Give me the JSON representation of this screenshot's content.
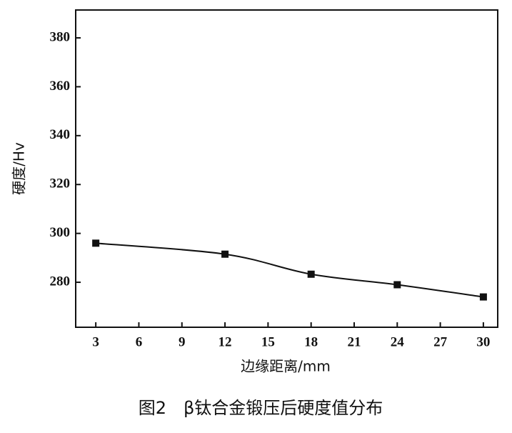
{
  "chart_data": {
    "type": "line",
    "title": "图2　β钛合金锻压后硬度值分布",
    "x_label": "边缘距离/mm",
    "y_label": "硬度/Hv",
    "x": [
      3,
      12,
      18,
      24,
      30
    ],
    "series": [
      {
        "name": "硬度",
        "color": "#111111",
        "values": [
          296,
          291.5,
          283.3,
          279,
          274
        ]
      }
    ],
    "xlim": [
      1.6,
      31
    ],
    "ylim": [
      261.6,
      391.4
    ],
    "xticks": [
      3,
      6,
      9,
      12,
      15,
      18,
      21,
      24,
      27,
      30
    ],
    "yticks": [
      280,
      300,
      320,
      340,
      360,
      380
    ],
    "grid": false
  }
}
